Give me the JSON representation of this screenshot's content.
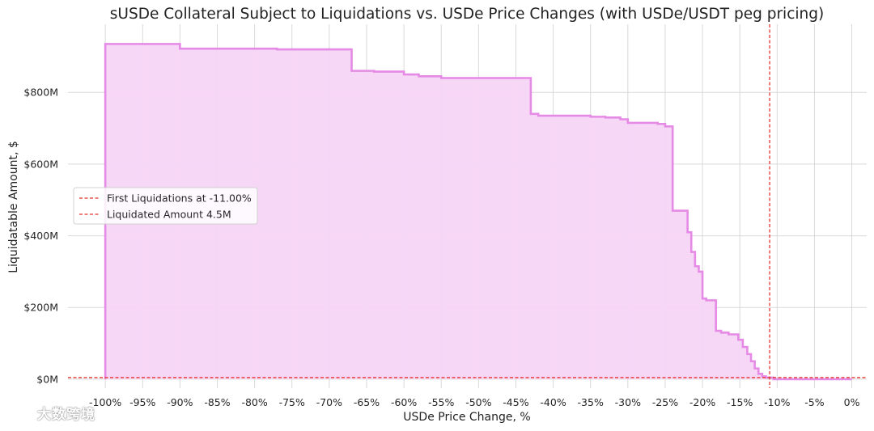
{
  "chart_data": {
    "type": "area",
    "title": "sUSDe Collateral Subject to Liquidations vs. USDe Price Changes (with USDe/USDT peg pricing)",
    "xlabel": "USDe Price Change, %",
    "ylabel": "Liquidatable Amount, $",
    "xlim": [
      -105,
      2
    ],
    "ylim": [
      -25,
      990
    ],
    "xticks": [
      -100,
      -95,
      -90,
      -85,
      -80,
      -75,
      -70,
      -65,
      -60,
      -55,
      -50,
      -45,
      -40,
      -35,
      -30,
      -25,
      -20,
      -15,
      -10,
      -5,
      0
    ],
    "xtick_labels": [
      "-100%",
      "-95%",
      "-90%",
      "-85%",
      "-80%",
      "-75%",
      "-70%",
      "-65%",
      "-60%",
      "-55%",
      "-50%",
      "-45%",
      "-40%",
      "-35%",
      "-30%",
      "-25%",
      "-20%",
      "-15%",
      "-10%",
      "-5%",
      "0%"
    ],
    "yticks": [
      0,
      200,
      400,
      600,
      800
    ],
    "ytick_labels": [
      "$0M",
      "$200M",
      "$400M",
      "$600M",
      "$800M"
    ],
    "grid": true,
    "legend_placement": "center-left",
    "series": [
      {
        "color": "#e58ae5",
        "fill_color": "#f7d5f6",
        "step": true,
        "x": [
          -100,
          -90,
          -77,
          -67,
          -64,
          -60,
          -58,
          -55,
          -51,
          -43,
          -42,
          -35,
          -33,
          -31,
          -30,
          -26,
          -25,
          -24,
          -23,
          -22,
          -21.5,
          -21,
          -20.5,
          -20,
          -19.5,
          -18.2,
          -17.5,
          -16.5,
          -15.2,
          -14.6,
          -14,
          -13.5,
          -13,
          -12.5,
          -12,
          -11.5,
          -11,
          -10.5,
          0
        ],
        "y": [
          935,
          922,
          920,
          860,
          858,
          850,
          845,
          840,
          840,
          740,
          735,
          732,
          730,
          725,
          715,
          712,
          705,
          470,
          470,
          410,
          355,
          315,
          300,
          225,
          220,
          135,
          130,
          125,
          110,
          90,
          70,
          50,
          30,
          15,
          8,
          4.5,
          4.5,
          0,
          0
        ]
      }
    ],
    "reference_lines": [
      {
        "orientation": "vertical",
        "value": -11,
        "color": "#e3342f",
        "style": "dashed",
        "label": "First Liquidations at -11.00%"
      },
      {
        "orientation": "horizontal",
        "value": 4.5,
        "color": "#e3342f",
        "style": "dashed",
        "label": "Liquidated Amount 4.5M"
      }
    ],
    "legend": [
      "First Liquidations at -11.00%",
      "Liquidated Amount 4.5M"
    ]
  },
  "watermark": {
    "text": "大数跨境"
  }
}
